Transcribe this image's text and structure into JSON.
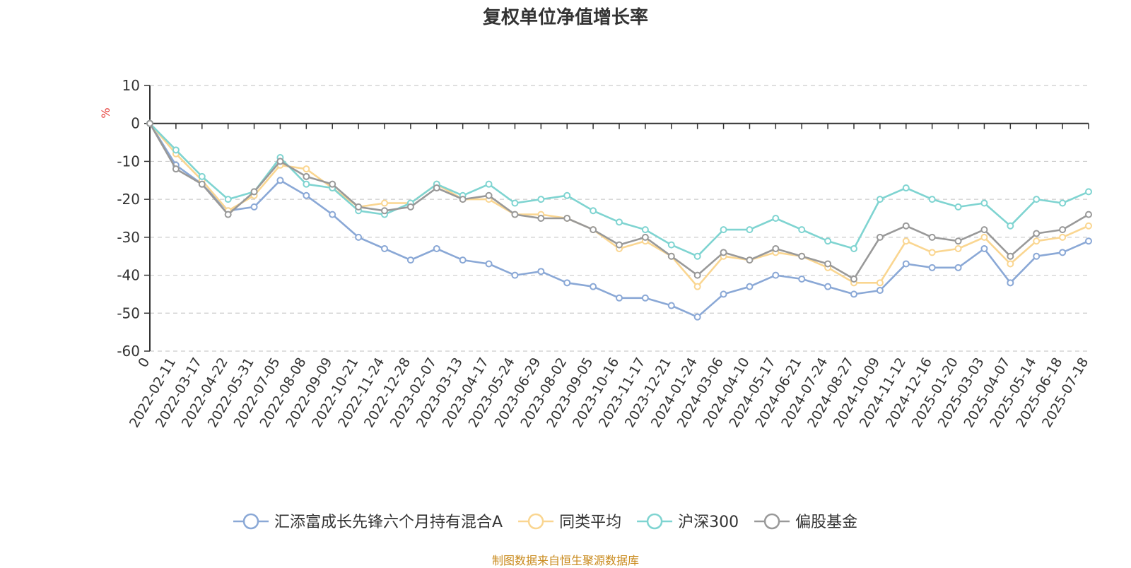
{
  "chart_data": {
    "type": "line",
    "title": "复权单位净值增长率",
    "ylabel": "%",
    "xlabel": "",
    "ylim": [
      -60,
      10
    ],
    "yticks": [
      10,
      0,
      -10,
      -20,
      -30,
      -40,
      -50,
      -60
    ],
    "x_start_label": "0",
    "grid": true,
    "legend_position": "bottom",
    "x": [
      "2022-02-11",
      "2022-03-17",
      "2022-04-22",
      "2022-05-31",
      "2022-07-05",
      "2022-08-08",
      "2022-09-09",
      "2022-10-21",
      "2022-11-24",
      "2022-12-28",
      "2023-02-07",
      "2023-03-13",
      "2023-04-17",
      "2023-05-24",
      "2023-06-29",
      "2023-08-02",
      "2023-09-05",
      "2023-10-16",
      "2023-11-17",
      "2023-12-21",
      "2024-01-24",
      "2024-03-06",
      "2024-04-10",
      "2024-05-17",
      "2024-06-21",
      "2024-07-24",
      "2024-08-27",
      "2024-10-09",
      "2024-11-12",
      "2024-12-16",
      "2025-01-20",
      "2025-03-03",
      "2025-04-07",
      "2025-05-14",
      "2025-06-18",
      "2025-07-18"
    ],
    "series": [
      {
        "name": "汇添富成长先锋六个月持有混合A",
        "color": "#8aa8d6",
        "values": [
          -11,
          -16,
          -23,
          -22,
          -15,
          -19,
          -24,
          -30,
          -33,
          -36,
          -33,
          -36,
          -37,
          -40,
          -39,
          -42,
          -43,
          -46,
          -46,
          -48,
          -51,
          -45,
          -43,
          -40,
          -41,
          -43,
          -45,
          -44,
          -37,
          -38,
          -38,
          -33,
          -42,
          -35,
          -34,
          -31
        ]
      },
      {
        "name": "同类平均",
        "color": "#fad691",
        "values": [
          -8,
          -15,
          -23,
          -19,
          -11,
          -12,
          -17,
          -22,
          -21,
          -21,
          -16,
          -20,
          -20,
          -24,
          -24,
          -25,
          -28,
          -33,
          -31,
          -35,
          -43,
          -35,
          -36,
          -34,
          -35,
          -38,
          -42,
          -42,
          -31,
          -34,
          -33,
          -30,
          -37,
          -31,
          -30,
          -27
        ]
      },
      {
        "name": "沪深300",
        "color": "#7fd4d1",
        "values": [
          -7,
          -14,
          -20,
          -18,
          -9,
          -16,
          -17,
          -23,
          -24,
          -21,
          -16,
          -19,
          -16,
          -21,
          -20,
          -19,
          -23,
          -26,
          -28,
          -32,
          -35,
          -28,
          -28,
          -25,
          -28,
          -31,
          -33,
          -20,
          -17,
          -20,
          -22,
          -21,
          -27,
          -20,
          -21,
          -18
        ]
      },
      {
        "name": "偏股基金",
        "color": "#999999",
        "values": [
          -12,
          -16,
          -24,
          -18,
          -10,
          -14,
          -16,
          -22,
          -23,
          -22,
          -17,
          -20,
          -19,
          -24,
          -25,
          -25,
          -28,
          -32,
          -30,
          -35,
          -40,
          -34,
          -36,
          -33,
          -35,
          -37,
          -41,
          -30,
          -27,
          -30,
          -31,
          -28,
          -35,
          -29,
          -28,
          -24
        ]
      }
    ],
    "source": "制图数据来自恒生聚源数据库"
  }
}
